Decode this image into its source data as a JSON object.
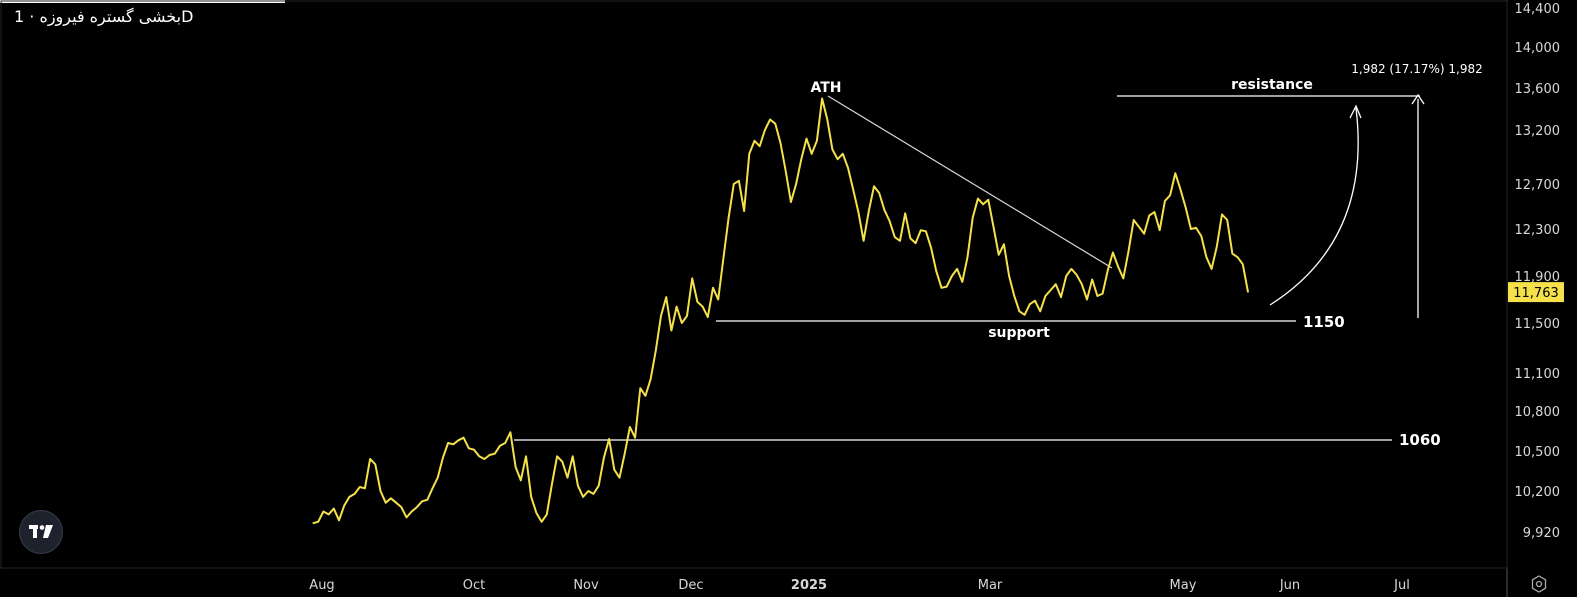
{
  "header": {
    "title": "بخشی گستره فیروزه · 1D"
  },
  "colors": {
    "background": "#000000",
    "price_line": "#f5e14a",
    "annotation": "#ffffff",
    "last_price_bg": "#f5e14a",
    "last_price_text": "#000000"
  },
  "chart_data": {
    "type": "line",
    "title": "بخشی گستره فیروزه · 1D",
    "xlabel": "",
    "ylabel": "",
    "grid": false,
    "x_ticks": [
      "Aug",
      "Oct",
      "Nov",
      "Dec",
      "2025",
      "Mar",
      "May",
      "Jun",
      "Jul"
    ],
    "y_ticks": [
      "14,400",
      "14,000",
      "13,600",
      "13,200",
      "12,700",
      "12,300",
      "11,900",
      "11,500",
      "11,100",
      "10,800",
      "10,500",
      "10,200",
      "9,920"
    ],
    "ylim": [
      9700,
      14450
    ],
    "last_price": {
      "value": 11763,
      "label": "11,763"
    },
    "series": [
      {
        "values": [
          9980,
          9990,
          10060,
          10040,
          10080,
          10000,
          10100,
          10160,
          10180,
          10230,
          10220,
          10440,
          10400,
          10200,
          10120,
          10150,
          10120,
          10090,
          10020,
          10060,
          10090,
          10130,
          10140,
          10220,
          10300,
          10450,
          10560,
          10550,
          10580,
          10600,
          10520,
          10510,
          10460,
          10440,
          10470,
          10480,
          10540,
          10560,
          10640,
          10380,
          10280,
          10460,
          10160,
          10050,
          9990,
          10040,
          10250,
          10460,
          10420,
          10300,
          10460,
          10240,
          10160,
          10200,
          10180,
          10240,
          10450,
          10590,
          10360,
          10300,
          10480,
          10680,
          10600,
          10980,
          10920,
          11050,
          11280,
          11560,
          11720,
          11440,
          11640,
          11500,
          11560,
          11880,
          11680,
          11640,
          11550,
          11800,
          11700,
          12050,
          12400,
          12700,
          12730,
          12460,
          12980,
          13100,
          13050,
          13200,
          13300,
          13260,
          13080,
          12820,
          12540,
          12700,
          12930,
          13120,
          12980,
          13100,
          13500,
          13300,
          13020,
          12930,
          12980,
          12850,
          12650,
          12450,
          12200,
          12460,
          12680,
          12620,
          12470,
          12370,
          12230,
          12200,
          12440,
          12220,
          12180,
          12290,
          12280,
          12140,
          11940,
          11800,
          11810,
          11900,
          11960,
          11850,
          12060,
          12400,
          12570,
          12520,
          12560,
          12320,
          12080,
          12170,
          11900,
          11730,
          11600,
          11570,
          11660,
          11690,
          11600,
          11730,
          11780,
          11830,
          11720,
          11900,
          11960,
          11910,
          11830,
          11700,
          11870,
          11730,
          11750,
          11950,
          12100,
          11980,
          11880,
          12110,
          12380,
          12320,
          12260,
          12420,
          12450,
          12290,
          12550,
          12600,
          12800,
          12650,
          12490,
          12300,
          12310,
          12240,
          12060,
          11960,
          12150,
          12430,
          12380,
          12090,
          12060,
          12000,
          11763
        ]
      }
    ],
    "annotations": {
      "ath": "ATH",
      "resistance": "resistance",
      "support": "support",
      "level_1150": "1150",
      "level_1060": "1060",
      "measure": "1,982 (17.17%) 1,982"
    }
  }
}
